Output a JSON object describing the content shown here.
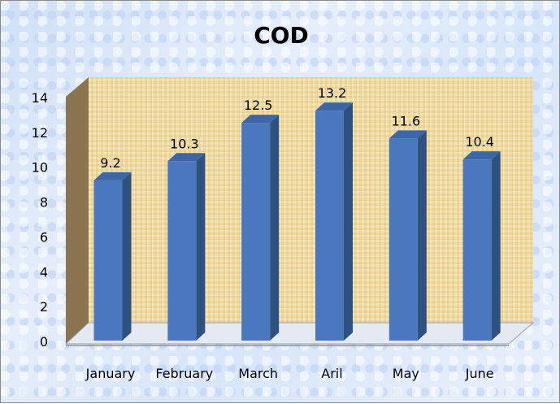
{
  "chart_data": {
    "type": "bar",
    "title": "COD",
    "xlabel": "",
    "ylabel": "",
    "categories": [
      "January",
      "February",
      "March",
      "Aril",
      "May",
      "June"
    ],
    "values": [
      9.2,
      10.3,
      12.5,
      13.2,
      11.6,
      10.4
    ],
    "ylim": [
      0,
      14
    ],
    "yticks": [
      0,
      2,
      4,
      6,
      8,
      10,
      12,
      14
    ],
    "grid": false,
    "legend": "none",
    "data_labels": true,
    "colors": {
      "bar_front": "#4a78bf",
      "bar_side": "#2f5180",
      "bar_top": "#3c66a8",
      "wall": "#f0dca8",
      "side_wall": "#8a7550",
      "floor": "#e4e9f2"
    }
  }
}
